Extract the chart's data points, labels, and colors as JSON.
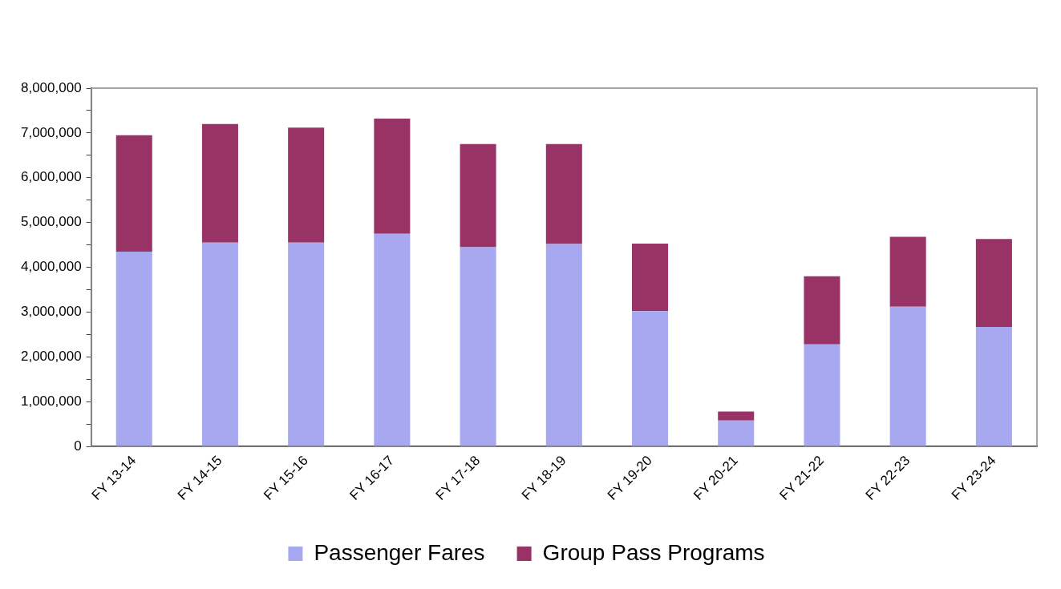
{
  "chart_data": {
    "type": "bar",
    "stacked": true,
    "categories": [
      "FY 13-14",
      "FY 14-15",
      "FY 15-16",
      "FY 16-17",
      "FY 17-18",
      "FY 18-19",
      "FY 19-20",
      "FY 20-21",
      "FY 21-22",
      "FY 22-23",
      "FY 23-24"
    ],
    "series": [
      {
        "name": "Passenger Fares",
        "color": "#a8a8f0",
        "values": [
          4350000,
          4550000,
          4550000,
          4750000,
          4450000,
          4520000,
          3020000,
          580000,
          2280000,
          3120000,
          2670000
        ]
      },
      {
        "name": "Group Pass Programs",
        "color": "#993366",
        "values": [
          2600000,
          2650000,
          2570000,
          2570000,
          2300000,
          2230000,
          1510000,
          200000,
          1520000,
          1560000,
          1960000
        ]
      }
    ],
    "ylim": [
      0,
      8000000
    ],
    "yticks": [
      0,
      {
        "value": 500000,
        "label": null
      },
      {
        "value": 1000000,
        "label": "1,000,000"
      },
      {
        "value": 1500000,
        "label": null
      },
      {
        "value": 2000000,
        "label": "2,000,000"
      },
      {
        "value": 2500000,
        "label": null
      },
      {
        "value": 3000000,
        "label": "3,000,000"
      },
      {
        "value": 3500000,
        "label": null
      },
      {
        "value": 4000000,
        "label": "4,000,000"
      },
      {
        "value": 4500000,
        "label": null
      },
      {
        "value": 5000000,
        "label": "5,000,000"
      },
      {
        "value": 5500000,
        "label": null
      },
      {
        "value": 6000000,
        "label": "6,000,000"
      },
      {
        "value": 6500000,
        "label": null
      },
      {
        "value": 7000000,
        "label": "7,000,000"
      },
      {
        "value": 7500000,
        "label": null
      },
      {
        "value": 8000000,
        "label": "8,000,000"
      }
    ],
    "grid": false,
    "legend": "bottom"
  }
}
